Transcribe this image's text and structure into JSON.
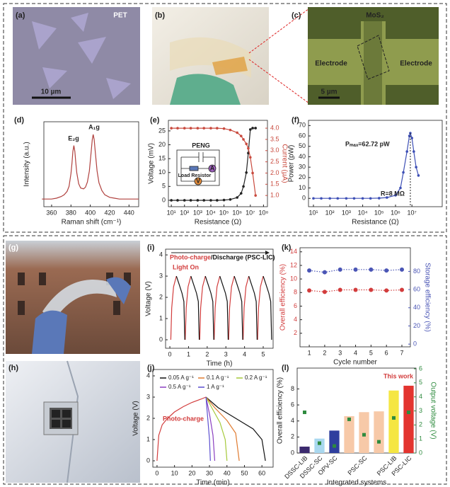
{
  "labels": [
    "(a)",
    "(b)",
    "(c)",
    "(d)",
    "(e)",
    "(f)",
    "(g)",
    "(h)",
    "(i)",
    "(j)",
    "(k)",
    "(l)"
  ],
  "photo_texts": {
    "a": [
      "PET",
      "10 µm"
    ],
    "c": [
      "MoS₂",
      "Electrode",
      "Electrode",
      "5 µm"
    ]
  },
  "chart_data": [
    {
      "type": "line",
      "x": [
        350,
        355,
        360,
        365,
        370,
        373,
        376,
        378,
        380,
        381,
        382,
        383,
        384,
        385,
        386,
        388,
        390,
        393,
        395,
        397,
        399,
        401,
        402,
        403,
        404,
        405,
        407,
        409,
        412,
        415,
        420,
        425,
        430,
        440,
        450
      ],
      "values": [
        0.09,
        0.09,
        0.09,
        0.1,
        0.12,
        0.14,
        0.18,
        0.24,
        0.39,
        0.51,
        0.65,
        0.72,
        0.65,
        0.52,
        0.4,
        0.27,
        0.22,
        0.21,
        0.23,
        0.29,
        0.42,
        0.66,
        0.79,
        0.85,
        0.79,
        0.66,
        0.42,
        0.28,
        0.19,
        0.14,
        0.11,
        0.1,
        0.09,
        0.09,
        0.09
      ],
      "color": "#b0413e",
      "xlim": [
        352,
        450
      ],
      "xticks": [
        360,
        380,
        400,
        420,
        440
      ],
      "ylim": [
        0,
        1
      ],
      "xlabel": "Raman shift (cm⁻¹)",
      "ylabel": "Intensity (a.u.)",
      "annotations": [
        {
          "text": "E₂g"
        },
        {
          "text": "A₁g"
        }
      ]
    },
    {
      "type": "line",
      "xlog": true,
      "markers": true,
      "x": [
        10,
        30,
        100,
        300,
        1000,
        3000,
        10000,
        30000,
        100000,
        300000,
        1000000,
        2000000,
        3000000,
        5000000,
        7000000,
        10000000,
        15000000,
        25000000
      ],
      "series": [
        {
          "color": "#222222",
          "values": [
            0,
            0,
            0,
            0,
            0,
            0,
            0,
            0,
            0.1,
            0.3,
            1,
            2.5,
            5,
            10,
            17,
            25.5,
            26,
            26
          ]
        },
        {
          "color": "#c94a3e",
          "axis": "y2",
          "values": [
            4.0,
            4.0,
            4.0,
            4.0,
            4.0,
            4.0,
            4.0,
            4.0,
            3.98,
            3.92,
            3.8,
            3.65,
            3.5,
            3.3,
            3.1,
            2.7,
            2.0,
            1.0
          ]
        }
      ],
      "xlim": [
        6,
        200000000
      ],
      "xticks": [
        {
          "value": 10,
          "label": "10¹"
        },
        {
          "value": 100,
          "label": "10²"
        },
        {
          "value": 1000,
          "label": "10³"
        },
        {
          "value": 10000,
          "label": "10⁴"
        },
        {
          "value": 100000,
          "label": "10⁵"
        },
        {
          "value": 1000000,
          "label": "10⁶"
        },
        {
          "value": 10000000,
          "label": "10⁷"
        },
        {
          "value": 100000000,
          "label": "10⁸"
        }
      ],
      "ylim": [
        -2.3,
        28.8
      ],
      "yticks": [
        0,
        5,
        10,
        15,
        20,
        25
      ],
      "y2lim": [
        0.5,
        4.35
      ],
      "y2ticks": [
        {
          "value": 1,
          "label": "1.0"
        },
        1.5,
        {
          "value": 2,
          "label": "2.0"
        },
        2.5,
        {
          "value": 3,
          "label": "3.0"
        },
        3.5,
        {
          "value": 4,
          "label": "4.0"
        }
      ],
      "y2color": "#c94a3e",
      "xlabel": "Resistance (Ω)",
      "ylabel": "Voltage (mV)",
      "y2label": "Current (µA)",
      "annotations": [
        {
          "text": "PENG"
        },
        {
          "text": "A"
        },
        {
          "text": "V"
        },
        {
          "text": "Load Resistor"
        }
      ]
    },
    {
      "type": "line",
      "xlog": true,
      "markers": true,
      "x": [
        10,
        30,
        100,
        300,
        1000,
        3000,
        10000,
        30000,
        100000,
        300000,
        1000000,
        2000000,
        3000000,
        5000000,
        7000000,
        8000000,
        10000000,
        13000000,
        18000000,
        25000000
      ],
      "values": [
        0,
        0,
        0,
        0,
        0,
        0,
        0,
        0,
        0.2,
        0.8,
        3,
        10,
        25,
        45,
        60,
        62.72,
        58,
        45,
        30,
        22
      ],
      "color": "#3d4fb5",
      "xlim": [
        5,
        700000000
      ],
      "xticks": [
        {
          "value": 10,
          "label": "10¹"
        },
        {
          "value": 100,
          "label": "10²"
        },
        {
          "value": 1000,
          "label": "10³"
        },
        {
          "value": 10000,
          "label": "10⁴"
        },
        {
          "value": 100000,
          "label": "10⁵"
        },
        {
          "value": 1000000,
          "label": "10⁶"
        },
        {
          "value": 10000000,
          "label": "10⁷"
        }
      ],
      "ylim": [
        -8,
        75
      ],
      "yticks": [
        0,
        10,
        20,
        30,
        40,
        50,
        60,
        70
      ],
      "xlabel": "Resistance (Ω)",
      "ylabel": "Power (pW)",
      "annotations": [
        {
          "text": "Pₘₐₓ=62.72 pW"
        },
        {
          "text": "R=8 MΩ"
        }
      ]
    },
    {
      "type": "line",
      "x": [
        0.05,
        0.1,
        0.2,
        0.35,
        0.5,
        0.65,
        0.75,
        0.8,
        0.825,
        0.875,
        0.975,
        1.125,
        1.275,
        1.425,
        1.525,
        1.575,
        1.6,
        1.65,
        1.75,
        1.9,
        2.05,
        2.2,
        2.3,
        2.35,
        2.375,
        2.425,
        2.525,
        2.675,
        2.825,
        2.975,
        3.075,
        3.125,
        3.15,
        3.2,
        3.3,
        3.45,
        3.6,
        3.75,
        3.85,
        3.9,
        3.925,
        3.975,
        4.075,
        4.225,
        4.375,
        4.525,
        4.625,
        4.675,
        4.7,
        4.75,
        4.85,
        5.0,
        5.15,
        5.3,
        5.4,
        5.45
      ],
      "series": [
        {
          "color": "#d23c3c",
          "values": [
            0,
            1.5,
            2.5,
            3,
            null,
            null,
            null,
            null,
            0,
            1.5,
            2.5,
            3,
            null,
            null,
            null,
            null,
            0,
            1.5,
            2.5,
            3,
            null,
            null,
            null,
            null,
            0,
            1.5,
            2.5,
            3,
            null,
            null,
            null,
            null,
            0,
            1.5,
            2.5,
            3,
            null,
            null,
            null,
            null,
            0,
            1.5,
            2.5,
            3,
            null,
            null,
            null,
            null,
            0,
            1.5,
            2.5,
            3,
            null,
            null,
            null,
            null
          ]
        },
        {
          "color": "#111111",
          "values": [
            null,
            null,
            null,
            3,
            2.6,
            2.2,
            1.8,
            0,
            null,
            null,
            null,
            3,
            2.6,
            2.2,
            1.8,
            0,
            null,
            null,
            null,
            3,
            2.6,
            2.2,
            1.8,
            0,
            null,
            null,
            null,
            3,
            2.6,
            2.2,
            1.8,
            0,
            null,
            null,
            null,
            3,
            2.6,
            2.2,
            1.8,
            0,
            null,
            null,
            null,
            3,
            2.6,
            2.2,
            1.8,
            0,
            null,
            null,
            null,
            3,
            2.6,
            2.2,
            1.8,
            0
          ]
        }
      ],
      "xlim": [
        -0.23,
        5.53
      ],
      "xticks": [
        0,
        1,
        2,
        3,
        4,
        5
      ],
      "ylim": [
        -0.4,
        4.27
      ],
      "yticks": [
        0,
        1,
        2,
        3,
        4
      ],
      "xlabel": "Time (h)",
      "ylabel": "Voltage (V)",
      "annotations": [
        {
          "text": "Photo-charge",
          "color": "#d23c3c"
        },
        {
          "text": "/Discharge (PSC-LIC)",
          "color": "#111111"
        },
        {
          "text": "Light On",
          "color": "#d23c3c"
        }
      ]
    },
    {
      "type": "line",
      "series": [
        {
          "color": "#d23c3c",
          "x": [
            0,
            1,
            3,
            6,
            10,
            15,
            20,
            25,
            28
          ],
          "values": [
            0,
            1.2,
            1.7,
            2.0,
            2.3,
            2.55,
            2.75,
            2.9,
            3.0
          ]
        },
        {
          "name": "0.05 A g⁻¹",
          "color": "#111111",
          "x": [
            28,
            35,
            45,
            55,
            60,
            62
          ],
          "values": [
            3.0,
            2.5,
            2.0,
            1.5,
            1.0,
            0
          ]
        },
        {
          "name": "0.1 A g⁻¹",
          "color": "#e07b30",
          "x": [
            28,
            33,
            40,
            45,
            47
          ],
          "values": [
            3.0,
            2.5,
            1.9,
            1.3,
            0
          ]
        },
        {
          "name": "0.2 A g⁻¹",
          "color": "#a5c93a",
          "x": [
            28,
            32,
            36,
            39,
            40
          ],
          "values": [
            3.0,
            2.4,
            1.8,
            1.0,
            0
          ]
        },
        {
          "name": "0.5 A g⁻¹",
          "color": "#8a3fc0",
          "x": [
            28,
            30,
            32,
            33
          ],
          "values": [
            3.0,
            2.2,
            1.2,
            0
          ]
        },
        {
          "name": "1 A g⁻¹",
          "color": "#5b4fd0",
          "x": [
            28,
            29,
            30,
            30.5
          ],
          "values": [
            3.0,
            2.0,
            1.0,
            0
          ]
        }
      ],
      "xlim": [
        -2.4,
        66.4
      ],
      "xticks": [
        0,
        10,
        20,
        30,
        40,
        50,
        60
      ],
      "ylim": [
        -0.3,
        4.3
      ],
      "yticks": [
        0,
        1,
        2,
        3,
        4
      ],
      "xlabel": "Time (min)",
      "ylabel": "Voltage (V)",
      "annotations": [
        {
          "text": "Photo-charge",
          "color": "#d23c3c"
        }
      ]
    },
    {
      "type": "line",
      "markers": true,
      "linestyle": "dotted",
      "x": [
        1,
        2,
        3,
        4,
        5,
        6,
        7
      ],
      "series": [
        {
          "color": "#d23c3c",
          "values": [
            8.3,
            8.1,
            8.4,
            8.4,
            8.4,
            8.3,
            8.4
          ]
        },
        {
          "color": "#4a55b5",
          "axis": "y2",
          "values": [
            81,
            79,
            82,
            82,
            82,
            81,
            82
          ]
        }
      ],
      "xlim": [
        0.4,
        7.55
      ],
      "xticks": [
        1,
        2,
        3,
        4,
        5,
        6,
        7
      ],
      "ylim": [
        0,
        14.6
      ],
      "yticks": [
        2,
        4,
        6,
        8,
        10,
        12,
        14
      ],
      "y2lim": [
        -3,
        106
      ],
      "y2ticks": [
        0,
        20,
        40,
        60,
        80
      ],
      "ycolor": "#d23c3c",
      "y2color": "#4a55b5",
      "xlabel": "Cycle number",
      "ylabel": "Overall efficiency (%)",
      "y2label": "Storage efficiency (%)"
    },
    {
      "type": "bar",
      "categories": [
        "DSSC-LIB",
        "DSSC-SC",
        "OPV-SC",
        null,
        "PSC-SC",
        null,
        "PSC-LIB",
        "PSC-LIC"
      ],
      "values": [
        0.8,
        1.8,
        2.8,
        4.6,
        5.1,
        5.2,
        7.8,
        8.4
      ],
      "colors": [
        "#3b2a6e",
        "#a9d8ef",
        "#2f3f9e",
        "#f7c9a8",
        "#f7c9a8",
        "#f7c9a8",
        "#f5e642",
        "#e3342f"
      ],
      "series": [
        {
          "color": "#2e8b3e",
          "axis": "y2",
          "values": [
            2.9,
            0.7,
            0.5,
            2.4,
            1.3,
            0.8,
            2.5,
            2.9
          ]
        }
      ],
      "ylim": [
        0,
        10.6
      ],
      "yticks": [
        0,
        2,
        4,
        6,
        8
      ],
      "y2lim": [
        0,
        6.05
      ],
      "y2ticks": [
        0,
        1,
        2,
        3,
        4,
        5,
        6
      ],
      "y2color": "#2e8b3e",
      "xlabel": "Integrated systems",
      "ylabel": "Overall efficiency (%)",
      "y2label": "Output voltage (V)",
      "annotations": [
        {
          "text": "This work",
          "color": "#d23c3c"
        }
      ]
    }
  ]
}
